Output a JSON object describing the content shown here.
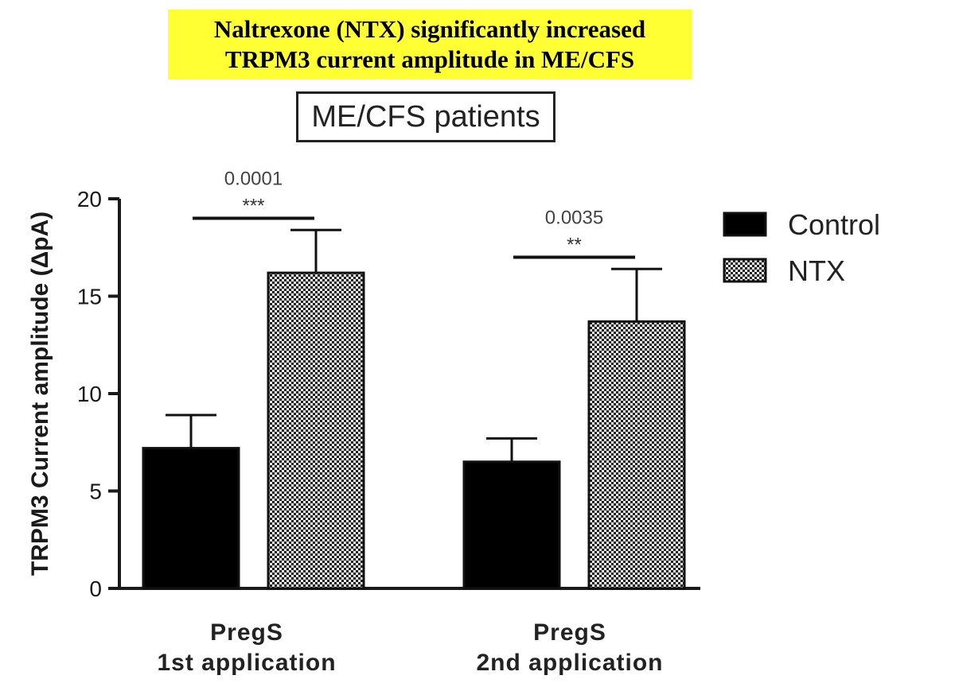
{
  "headline": {
    "line1": "Naltrexone (NTX) significantly increased",
    "line2": "TRPM3 current amplitude in ME/CFS"
  },
  "panel_label": "ME/CFS patients",
  "colors": {
    "highlight": "#ffff33",
    "control": "#000000",
    "ntx_fill": "#bdbdbd",
    "axis": "#1a1a1a"
  },
  "chart_data": {
    "type": "bar",
    "ylabel": "TRPM3 Current amplitude (ΔpA)",
    "xlabel": "",
    "ylim": [
      0,
      20
    ],
    "yticks": [
      0,
      5,
      10,
      15,
      20
    ],
    "categories": [
      {
        "line1": "PregS",
        "line2": "1st application"
      },
      {
        "line1": "PregS",
        "line2": "2nd application"
      }
    ],
    "series": [
      {
        "name": "Control",
        "pattern": "solid",
        "values": [
          7.2,
          6.5
        ],
        "errors": [
          1.7,
          1.2
        ]
      },
      {
        "name": "NTX",
        "pattern": "checker",
        "values": [
          16.2,
          13.7
        ],
        "errors": [
          2.2,
          2.7
        ]
      }
    ],
    "significance": [
      {
        "category": 0,
        "p_value": "0.0001",
        "stars": "***",
        "bar_level": 19.0
      },
      {
        "category": 1,
        "p_value": "0.0035",
        "stars": "**",
        "bar_level": 17.0
      }
    ],
    "legend": {
      "position": "top-right",
      "entries": [
        "Control",
        "NTX"
      ]
    }
  }
}
